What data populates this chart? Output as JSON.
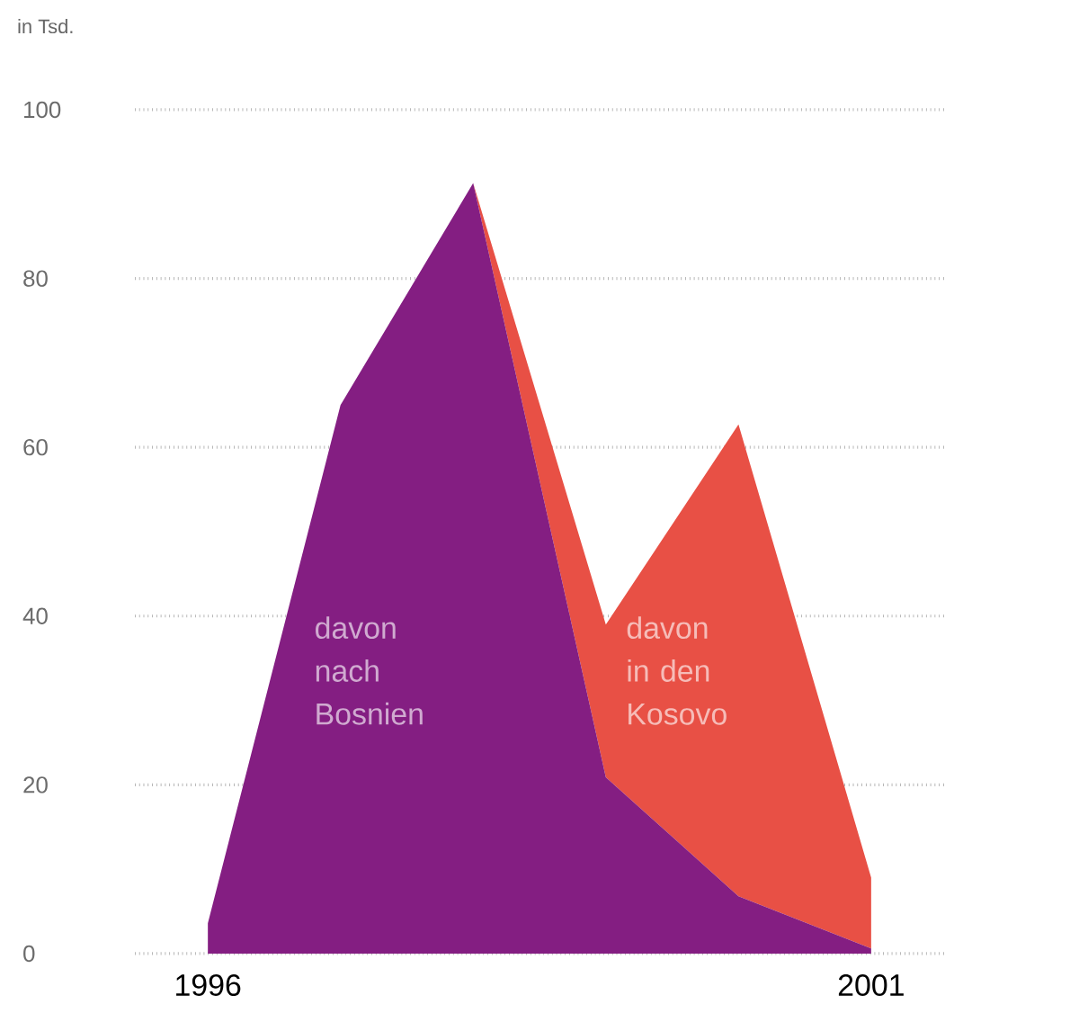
{
  "chart_data": {
    "type": "area",
    "stacked": true,
    "ylabel": "in Tsd.",
    "categories": [
      "1996",
      null,
      null,
      null,
      null,
      "2001"
    ],
    "ylim": [
      0,
      100
    ],
    "yticks": [
      0,
      20,
      40,
      60,
      80,
      100
    ],
    "grid": "y",
    "legend": false,
    "series": [
      {
        "name": "davon nach Bosnien",
        "color": "#841e82",
        "values": [
          3.6,
          65,
          91.3,
          20.9,
          6.8,
          0.6
        ]
      },
      {
        "name": "davon in den Kosovo",
        "color": "#e85045",
        "values": [
          0,
          0,
          0,
          18.1,
          55.9,
          8.4
        ]
      }
    ]
  }
}
